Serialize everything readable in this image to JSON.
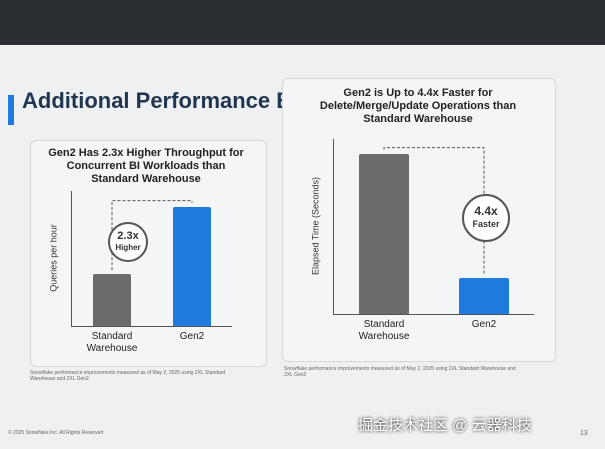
{
  "slide": {
    "title": "Additional Performance Breakthroughs",
    "copyright": "© 2025 Snowflake Inc. All Rights Reserved",
    "page_number": "13",
    "watermark": "掘金技术社区 @ 云器科技"
  },
  "chart_data": [
    {
      "type": "bar",
      "title": "Gen2 Has 2.3x Higher Throughput for Concurrent BI Workloads than Standard Warehouse",
      "y_label": "Queries per hour",
      "categories": [
        "Standard Warehouse",
        "Gen2"
      ],
      "values": [
        1,
        2.3
      ],
      "colors": [
        "#6b6b6b",
        "#1f7ae0"
      ],
      "ylim": [
        0,
        2.6
      ],
      "annotations": [
        "2.3x",
        "Higher"
      ],
      "footnote": "Snowflake performance improvements measured as of May 2, 2025 using 2XL Standard Warehouse and 2XL Gen2"
    },
    {
      "type": "bar",
      "title": "Gen2 is Up to 4.4x Faster for Delete/Merge/Update Operations than Standard Warehouse",
      "y_label": "Elapsed Time (Seconds)",
      "categories": [
        "Standard Warehouse",
        "Gen2"
      ],
      "values": [
        4.4,
        1
      ],
      "colors": [
        "#6b6b6b",
        "#1f7ae0"
      ],
      "ylim": [
        0,
        4.8
      ],
      "annotations": [
        "4.4x",
        "Faster"
      ],
      "footnote": "Snowflake performance improvements measured as of May 2, 2025 using 2XL Standard Warehouse and 2XL Gen2"
    }
  ]
}
